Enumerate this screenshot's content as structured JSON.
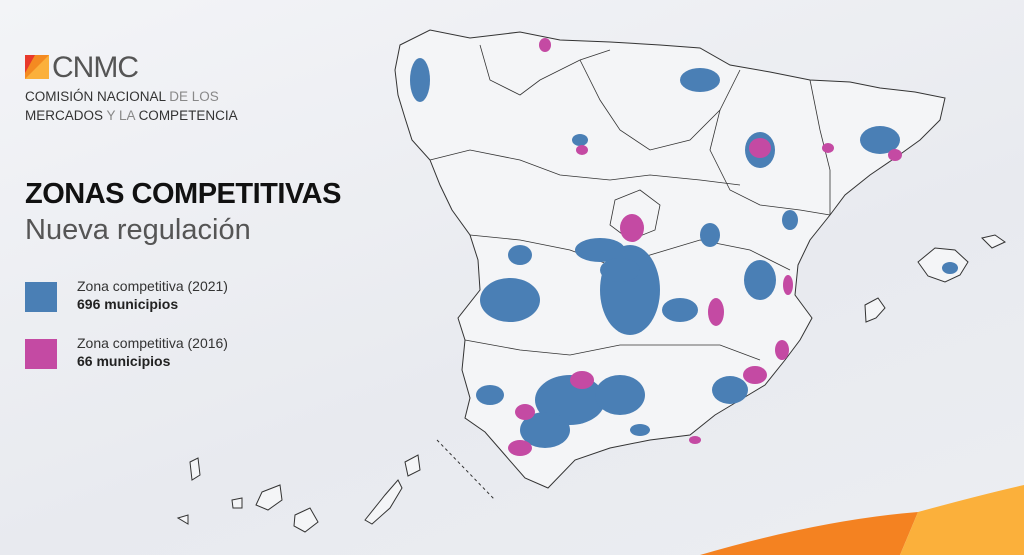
{
  "logo": {
    "wordmark": "CNMC",
    "colors": [
      "#e8392b",
      "#f48a21",
      "#fbb03b"
    ]
  },
  "organization": {
    "line1_bold": "COMISIÓN NACIONAL",
    "line1_light": " DE LOS",
    "line2_bold": "MERCADOS",
    "line2_light": " Y LA ",
    "line2_bold2": "COMPETENCIA"
  },
  "title": "ZONAS COMPETITIVAS",
  "subtitle": "Nueva regulación",
  "legend": [
    {
      "label": "Zona competitiva (2021)",
      "count": "696 municipios",
      "color": "#4a7fb5"
    },
    {
      "label": "Zona competitiva (2016)",
      "count": "66 municipios",
      "color": "#c44aa3"
    }
  ],
  "decor": {
    "orange": "#f48221",
    "yellow": "#fbb03b"
  }
}
